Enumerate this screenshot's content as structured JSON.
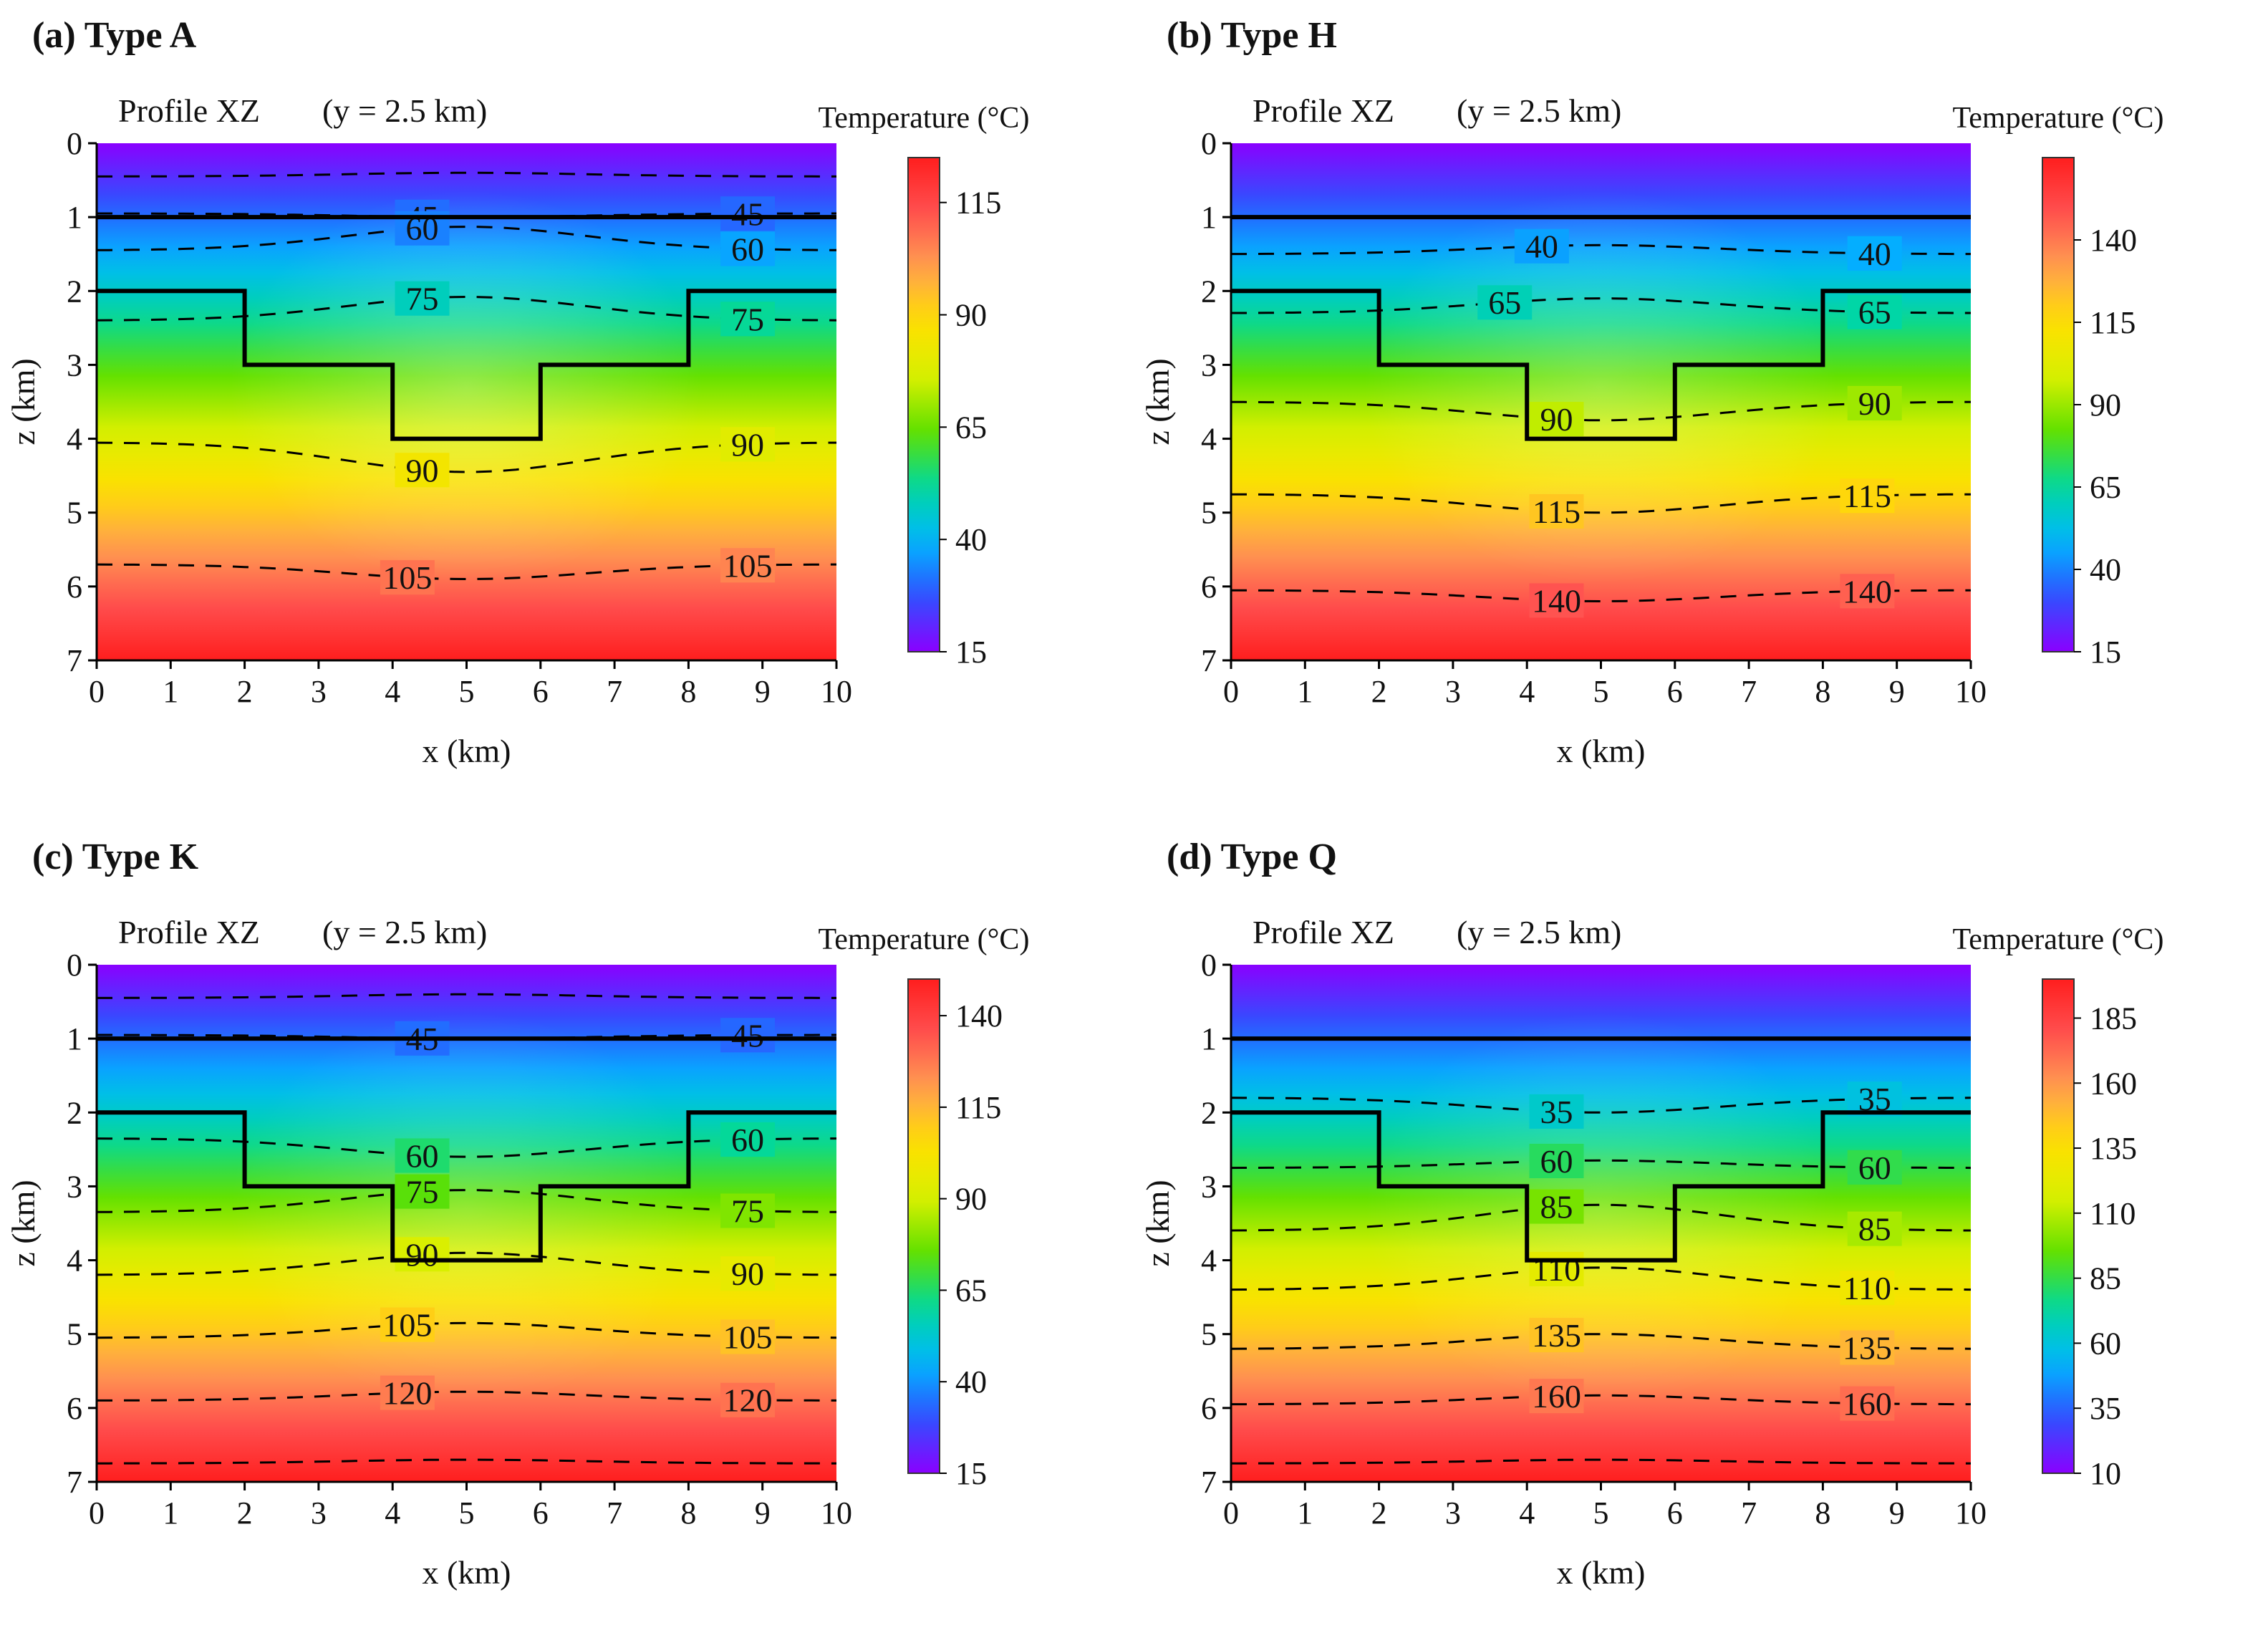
{
  "chart_data": [
    {
      "type": "heatmap",
      "panel_label": "(a) Type A",
      "profile_label": "Profile XZ",
      "profile_coord": "(y = 2.5 km)",
      "xlabel": "x (km)",
      "ylabel": "z (km)",
      "xlim": [
        0,
        10
      ],
      "ylim": [
        0,
        7
      ],
      "x_ticks": [
        "0",
        "1",
        "2",
        "3",
        "4",
        "5",
        "6",
        "7",
        "8",
        "9",
        "10"
      ],
      "y_ticks": [
        "0",
        "1",
        "2",
        "3",
        "4",
        "5",
        "6",
        "7"
      ],
      "colorbar_title": "Temperature (°C)",
      "colorbar_range": [
        15,
        125
      ],
      "colorbar_ticks": [
        15,
        40,
        65,
        90,
        115
      ],
      "temp_field": {
        "top": 15,
        "bottom": 125,
        "anomaly": 0.28
      },
      "layer_boundaries": [
        {
          "name": "layer-1",
          "points": [
            [
              0,
              1
            ],
            [
              10,
              1
            ]
          ]
        },
        {
          "name": "basin-boundary",
          "points": [
            [
              0,
              2
            ],
            [
              2,
              2
            ],
            [
              2,
              3
            ],
            [
              4,
              3
            ],
            [
              4,
              4
            ],
            [
              6,
              4
            ],
            [
              6,
              3
            ],
            [
              8,
              3
            ],
            [
              8,
              2
            ],
            [
              10,
              2
            ]
          ]
        }
      ],
      "contours": [
        {
          "label": "",
          "z_edge": 0.45,
          "dip": 0.05,
          "label_pos": []
        },
        {
          "label": "45",
          "z_edge": 0.95,
          "dip": -0.05,
          "label_pos": [
            4.4,
            8.8
          ]
        },
        {
          "label": "60",
          "z_edge": 1.45,
          "dip": 0.32,
          "label_pos": [
            4.4,
            8.8
          ]
        },
        {
          "label": "75",
          "z_edge": 2.4,
          "dip": 0.32,
          "label_pos": [
            4.4,
            8.8
          ]
        },
        {
          "label": "90",
          "z_edge": 4.05,
          "dip": -0.4,
          "label_pos": [
            4.4,
            8.8
          ]
        },
        {
          "label": "105",
          "z_edge": 5.7,
          "dip": -0.2,
          "label_pos": [
            4.2,
            8.8
          ]
        }
      ]
    },
    {
      "type": "heatmap",
      "panel_label": "(b) Type H",
      "profile_label": "Profile XZ",
      "profile_coord": "(y = 2.5 km)",
      "xlabel": "x (km)",
      "ylabel": "z (km)",
      "xlim": [
        0,
        10
      ],
      "ylim": [
        0,
        7
      ],
      "x_ticks": [
        "0",
        "1",
        "2",
        "3",
        "4",
        "5",
        "6",
        "7",
        "8",
        "9",
        "10"
      ],
      "y_ticks": [
        "0",
        "1",
        "2",
        "3",
        "4",
        "5",
        "6",
        "7"
      ],
      "colorbar_title": "Temperature (°C)",
      "colorbar_range": [
        15,
        165
      ],
      "colorbar_ticks": [
        15,
        40,
        65,
        90,
        115,
        140
      ],
      "temp_field": {
        "top": 15,
        "bottom": 165,
        "anomaly": 0.25
      },
      "layer_boundaries": [
        {
          "name": "layer-1",
          "points": [
            [
              0,
              1
            ],
            [
              10,
              1
            ]
          ]
        },
        {
          "name": "basin-boundary",
          "points": [
            [
              0,
              2
            ],
            [
              2,
              2
            ],
            [
              2,
              3
            ],
            [
              4,
              3
            ],
            [
              4,
              4
            ],
            [
              6,
              4
            ],
            [
              6,
              3
            ],
            [
              8,
              3
            ],
            [
              8,
              2
            ],
            [
              10,
              2
            ]
          ]
        }
      ],
      "contours": [
        {
          "label": "40",
          "z_edge": 1.5,
          "dip": 0.12,
          "label_pos": [
            4.2,
            8.7
          ]
        },
        {
          "label": "65",
          "z_edge": 2.3,
          "dip": 0.2,
          "label_pos": [
            3.7,
            8.7
          ]
        },
        {
          "label": "90",
          "z_edge": 3.5,
          "dip": -0.25,
          "label_pos": [
            4.4,
            8.7
          ]
        },
        {
          "label": "115",
          "z_edge": 4.75,
          "dip": -0.25,
          "label_pos": [
            4.4,
            8.6
          ]
        },
        {
          "label": "140",
          "z_edge": 6.05,
          "dip": -0.15,
          "label_pos": [
            4.4,
            8.6
          ]
        }
      ]
    },
    {
      "type": "heatmap",
      "panel_label": "(c) Type K",
      "profile_label": "Profile XZ",
      "profile_coord": "(y = 2.5 km)",
      "xlabel": "x (km)",
      "ylabel": "z (km)",
      "xlim": [
        0,
        10
      ],
      "ylim": [
        0,
        7
      ],
      "x_ticks": [
        "0",
        "1",
        "2",
        "3",
        "4",
        "5",
        "6",
        "7",
        "8",
        "9",
        "10"
      ],
      "y_ticks": [
        "0",
        "1",
        "2",
        "3",
        "4",
        "5",
        "6",
        "7"
      ],
      "colorbar_title": "Temperature (°C)",
      "colorbar_range": [
        15,
        150
      ],
      "colorbar_ticks": [
        15,
        40,
        65,
        90,
        115,
        140
      ],
      "temp_field": {
        "top": 15,
        "bottom": 150,
        "anomaly": 0.2
      },
      "layer_boundaries": [
        {
          "name": "layer-1",
          "points": [
            [
              0,
              1
            ],
            [
              10,
              1
            ]
          ]
        },
        {
          "name": "basin-boundary",
          "points": [
            [
              0,
              2
            ],
            [
              2,
              2
            ],
            [
              2,
              3
            ],
            [
              4,
              3
            ],
            [
              4,
              4
            ],
            [
              6,
              4
            ],
            [
              6,
              3
            ],
            [
              8,
              3
            ],
            [
              8,
              2
            ],
            [
              10,
              2
            ]
          ]
        }
      ],
      "contours": [
        {
          "label": "",
          "z_edge": 0.45,
          "dip": 0.05,
          "label_pos": []
        },
        {
          "label": "45",
          "z_edge": 0.95,
          "dip": -0.05,
          "label_pos": [
            4.4,
            8.8
          ]
        },
        {
          "label": "60",
          "z_edge": 2.35,
          "dip": -0.25,
          "label_pos": [
            4.4,
            8.8
          ]
        },
        {
          "label": "75",
          "z_edge": 3.35,
          "dip": 0.3,
          "label_pos": [
            4.4,
            8.8
          ]
        },
        {
          "label": "90",
          "z_edge": 4.2,
          "dip": 0.3,
          "label_pos": [
            4.4,
            8.8
          ]
        },
        {
          "label": "105",
          "z_edge": 5.05,
          "dip": 0.2,
          "label_pos": [
            4.2,
            8.8
          ]
        },
        {
          "label": "120",
          "z_edge": 5.9,
          "dip": 0.12,
          "label_pos": [
            4.2,
            8.8
          ]
        },
        {
          "label": "",
          "z_edge": 6.75,
          "dip": 0.05,
          "label_pos": []
        }
      ]
    },
    {
      "type": "heatmap",
      "panel_label": "(d) Type Q",
      "profile_label": "Profile XZ",
      "profile_coord": "(y = 2.5 km)",
      "xlabel": "x (km)",
      "ylabel": "z (km)",
      "xlim": [
        0,
        10
      ],
      "ylim": [
        0,
        7
      ],
      "x_ticks": [
        "0",
        "1",
        "2",
        "3",
        "4",
        "5",
        "6",
        "7",
        "8",
        "9",
        "10"
      ],
      "y_ticks": [
        "0",
        "1",
        "2",
        "3",
        "4",
        "5",
        "6",
        "7"
      ],
      "colorbar_title": "Temperature (°C)",
      "colorbar_range": [
        10,
        200
      ],
      "colorbar_ticks": [
        10,
        35,
        60,
        85,
        110,
        135,
        160,
        185
      ],
      "temp_field": {
        "top": 10,
        "bottom": 200,
        "anomaly": 0.2
      },
      "layer_boundaries": [
        {
          "name": "layer-1",
          "points": [
            [
              0,
              1
            ],
            [
              10,
              1
            ]
          ]
        },
        {
          "name": "basin-boundary",
          "points": [
            [
              0,
              2
            ],
            [
              2,
              2
            ],
            [
              2,
              3
            ],
            [
              4,
              3
            ],
            [
              4,
              4
            ],
            [
              6,
              4
            ],
            [
              6,
              3
            ],
            [
              8,
              3
            ],
            [
              8,
              2
            ],
            [
              10,
              2
            ]
          ]
        }
      ],
      "contours": [
        {
          "label": "35",
          "z_edge": 1.8,
          "dip": -0.2,
          "label_pos": [
            4.4,
            8.7
          ]
        },
        {
          "label": "60",
          "z_edge": 2.75,
          "dip": 0.1,
          "label_pos": [
            4.4,
            8.7
          ]
        },
        {
          "label": "85",
          "z_edge": 3.6,
          "dip": 0.35,
          "label_pos": [
            4.4,
            8.7
          ]
        },
        {
          "label": "110",
          "z_edge": 4.4,
          "dip": 0.3,
          "label_pos": [
            4.4,
            8.6
          ]
        },
        {
          "label": "135",
          "z_edge": 5.2,
          "dip": 0.2,
          "label_pos": [
            4.4,
            8.6
          ]
        },
        {
          "label": "160",
          "z_edge": 5.95,
          "dip": 0.12,
          "label_pos": [
            4.4,
            8.6
          ]
        },
        {
          "label": "",
          "z_edge": 6.75,
          "dip": 0.05,
          "label_pos": []
        }
      ]
    }
  ],
  "colors": {
    "colormap": [
      "#8a00ff",
      "#3050ff",
      "#00b6ff",
      "#00d8a0",
      "#5ee000",
      "#d8f000",
      "#ffe000",
      "#ffa050",
      "#ff5050",
      "#ff1e1e"
    ],
    "line": "#000000",
    "text": "#111111"
  }
}
